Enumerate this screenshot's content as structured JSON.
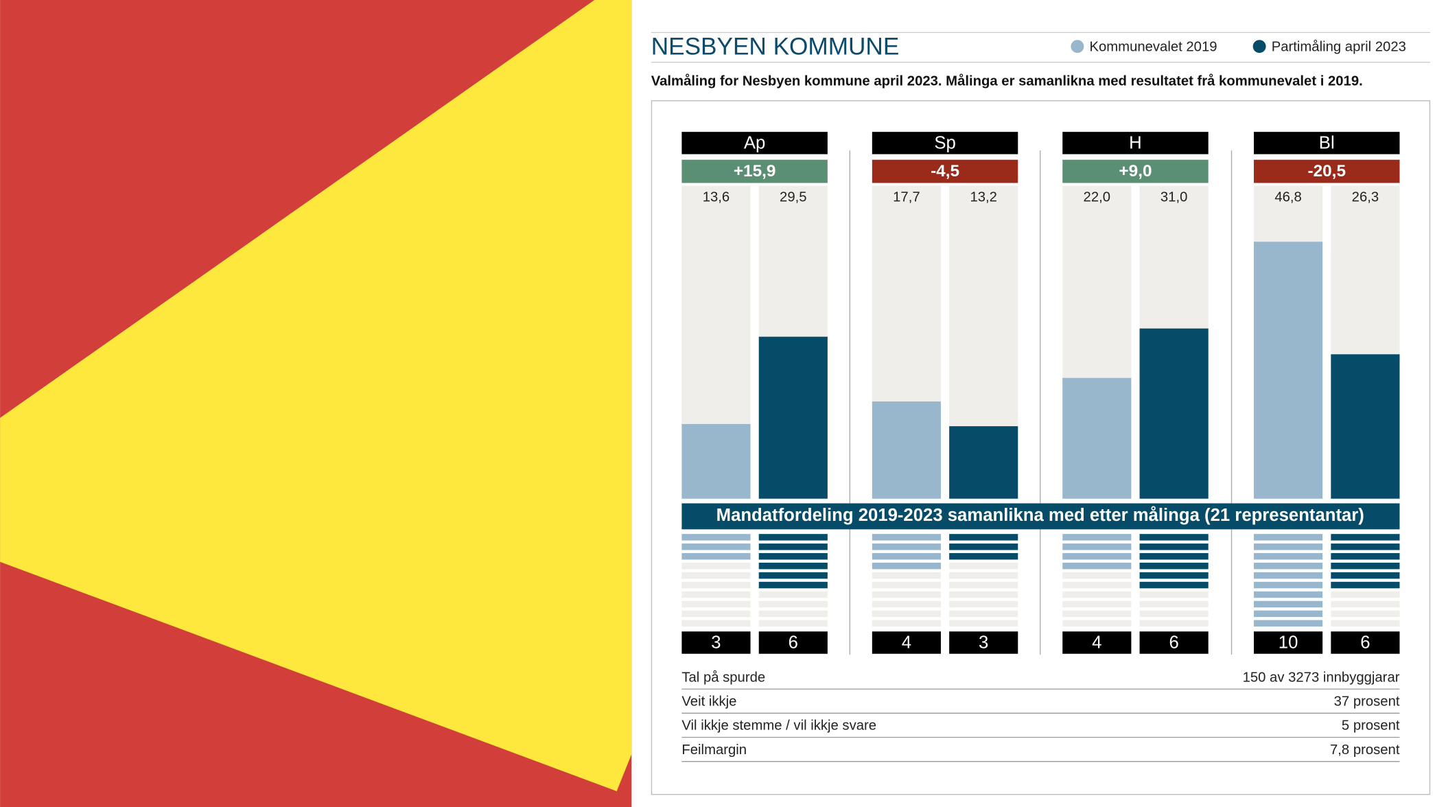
{
  "chart_data": {
    "type": "bar",
    "title": "NESBYEN KOMMUNE",
    "subtitle": "Valmåling for Nesbyen kommune april 2023. Målinga er samanlikna med resultatet frå kommunevalet i 2019.",
    "categories": [
      "Ap",
      "Sp",
      "H",
      "Bl"
    ],
    "changes": [
      15.9,
      -4.5,
      9.0,
      -20.5
    ],
    "change_labels": [
      "+15,9",
      "-4,5",
      "+9,0",
      "-20,5"
    ],
    "series": [
      {
        "name": "Kommunevalet 2019",
        "color": "#98b6cc",
        "values": [
          13.6,
          17.7,
          22.0,
          46.8
        ],
        "value_labels": [
          "13,6",
          "17,7",
          "22,0",
          "46,8"
        ],
        "seats": [
          3,
          4,
          4,
          10
        ]
      },
      {
        "name": "Partimåling april 2023",
        "color": "#064c69",
        "values": [
          29.5,
          13.2,
          31.0,
          26.3
        ],
        "value_labels": [
          "29,5",
          "13,2",
          "31,0",
          "26,3"
        ],
        "seats": [
          6,
          3,
          6,
          6
        ]
      }
    ],
    "ylim": [
      0,
      57
    ],
    "seat_title": "Mandatfordeling 2019-2023 samanlikna med etter målinga (21 representantar)",
    "facts": [
      [
        "Tal på spurde",
        "150 av 3273 innbyggjarar"
      ],
      [
        "Veit ikkje",
        "37 prosent"
      ],
      [
        "Vil ikkje stemme / vil ikkje svare",
        "5 prosent"
      ],
      [
        "Feilmargin",
        "7,8 prosent"
      ]
    ]
  }
}
